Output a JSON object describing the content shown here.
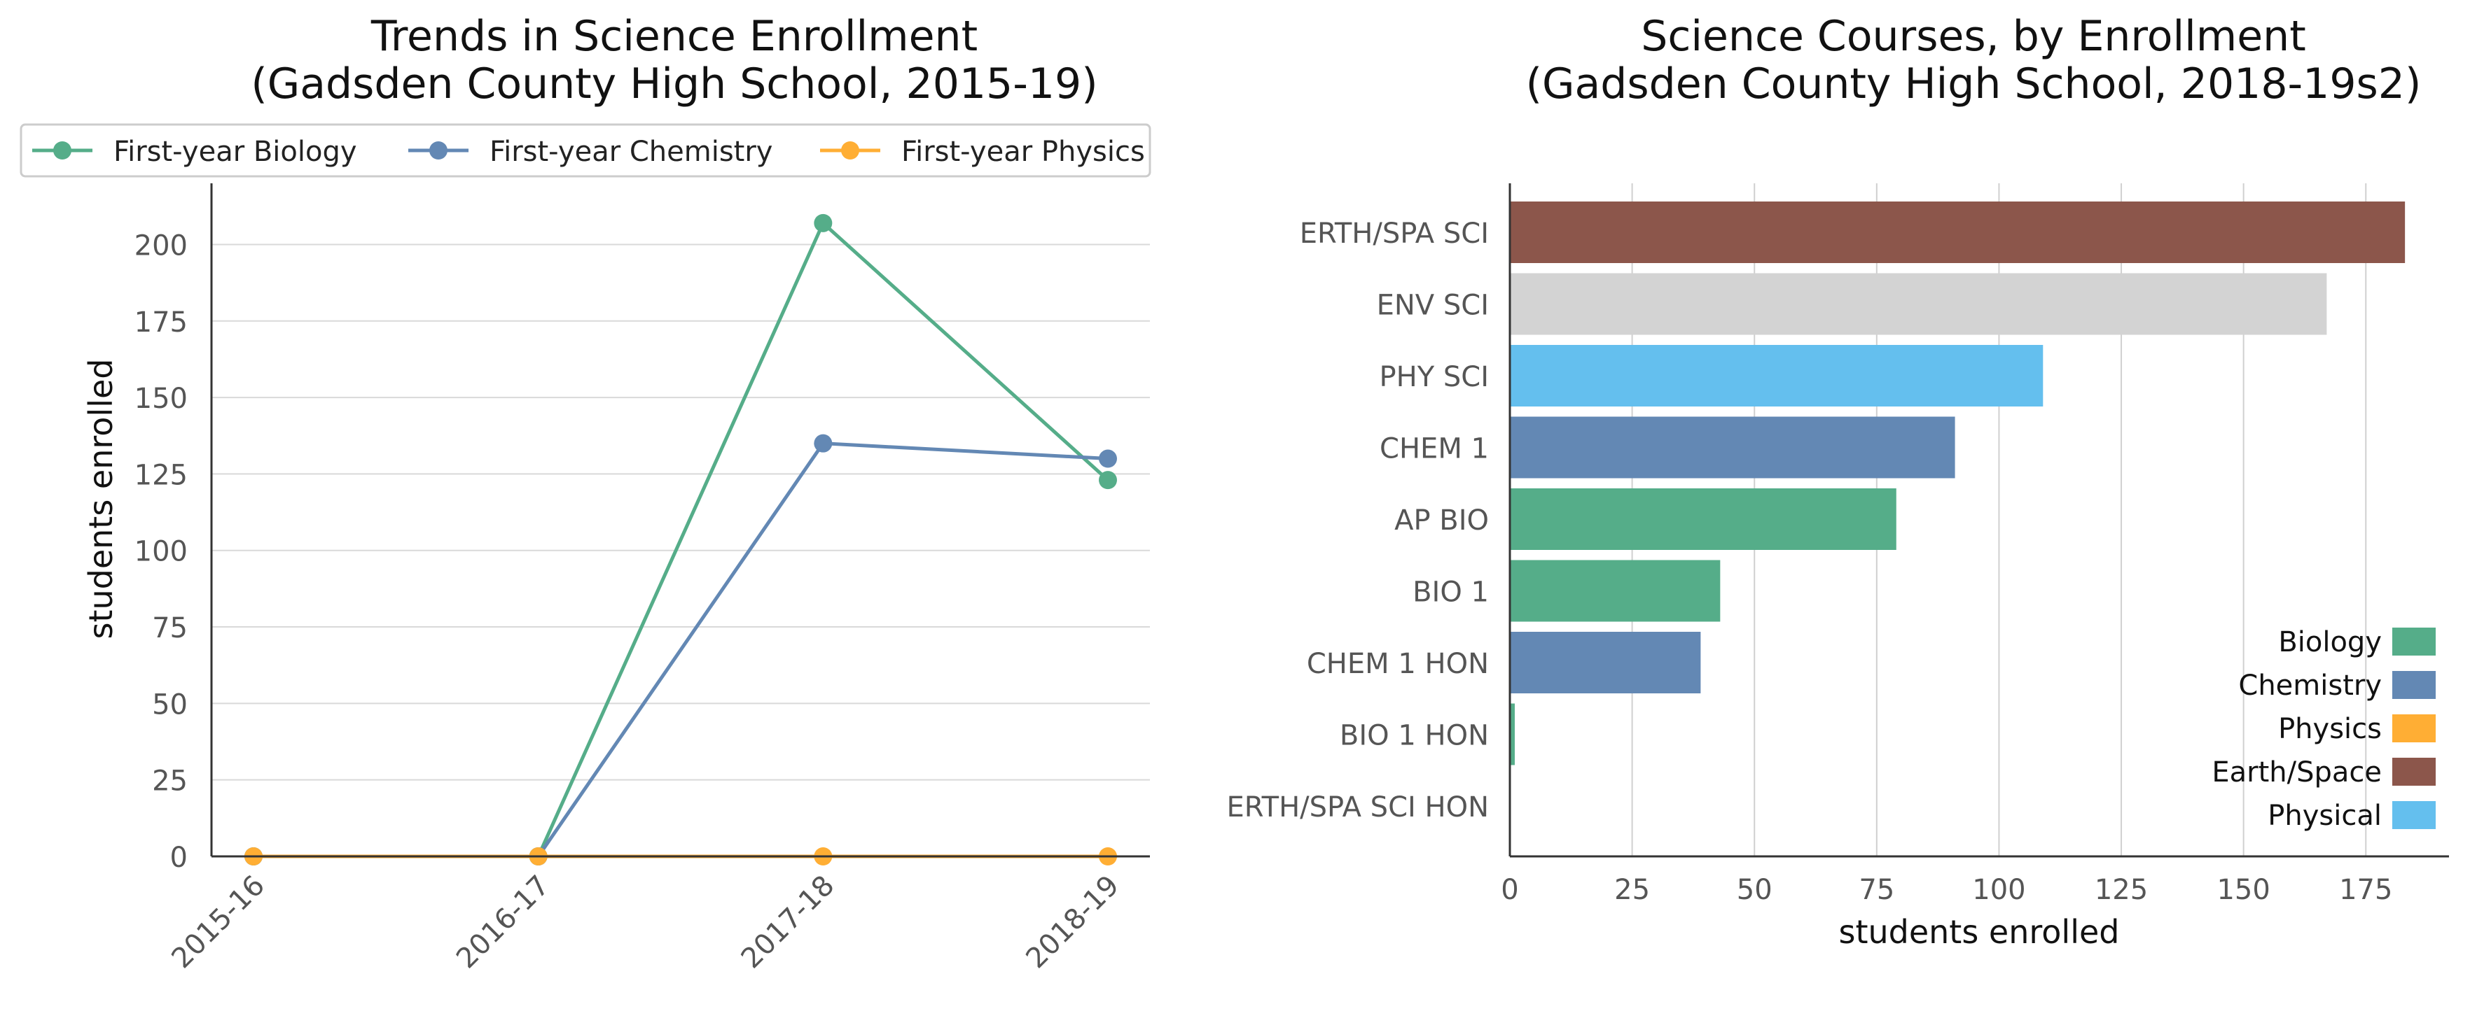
{
  "chart_data": [
    {
      "type": "line",
      "title": "Trends in Science Enrollment\n(Gadsden County High School, 2015-19)",
      "xlabel": "",
      "ylabel": "students enrolled",
      "x": [
        "2015-16",
        "2016-17",
        "2017-18",
        "2018-19"
      ],
      "ylim": [
        0,
        220
      ],
      "yticks": [
        0,
        25,
        50,
        75,
        100,
        125,
        150,
        175,
        200
      ],
      "grid": "horizontal",
      "legend_position": "top",
      "series": [
        {
          "name": "First-year Biology",
          "color": "#55ad89",
          "values": [
            0,
            0,
            207,
            123
          ]
        },
        {
          "name": "First-year Chemistry",
          "color": "#6388b4",
          "values": [
            0,
            0,
            135,
            130
          ]
        },
        {
          "name": "First-year Physics",
          "color": "#ffae34",
          "values": [
            0,
            0,
            0,
            0
          ]
        }
      ]
    },
    {
      "type": "bar",
      "orientation": "horizontal",
      "title": "Science Courses, by Enrollment\n(Gadsden County High School, 2018-19s2)",
      "xlabel": "students enrolled",
      "ylabel": "",
      "xlim": [
        0,
        192
      ],
      "xticks": [
        0,
        25,
        50,
        75,
        100,
        125,
        150,
        175
      ],
      "grid": "vertical",
      "legend_position": "bottom-right",
      "categories": [
        "ERTH/SPA SCI",
        "ENV SCI",
        "PHY SCI",
        "CHEM 1",
        "AP BIO",
        "BIO 1",
        "CHEM 1 HON",
        "BIO 1 HON",
        "ERTH/SPA SCI HON"
      ],
      "values": [
        183,
        167,
        109,
        91,
        79,
        43,
        39,
        1,
        0
      ],
      "bar_colors": [
        "#8c564b",
        "#d3d3d3",
        "#64bfee",
        "#6388b4",
        "#55ad89",
        "#55ad89",
        "#6388b4",
        "#55ad89",
        "#8c564b"
      ],
      "legend": [
        {
          "name": "Biology",
          "color": "#55ad89"
        },
        {
          "name": "Chemistry",
          "color": "#6388b4"
        },
        {
          "name": "Physics",
          "color": "#ffae34"
        },
        {
          "name": "Earth/Space",
          "color": "#8c564b"
        },
        {
          "name": "Physical",
          "color": "#64bfee"
        }
      ]
    }
  ]
}
